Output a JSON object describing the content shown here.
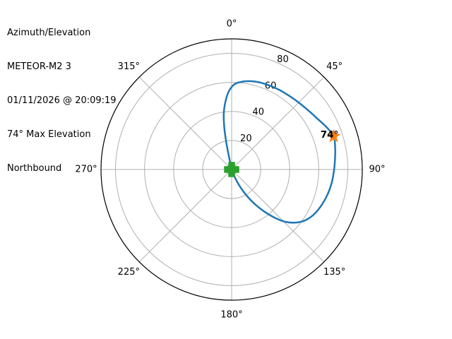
{
  "header": {
    "lines": [
      "Azimuth/Elevation",
      "METEOR-M2 3",
      "01/11/2026 @ 20:09:19",
      "74° Max Elevation",
      "Northbound"
    ]
  },
  "chart_data": {
    "type": "line",
    "subtype": "polar-azimuth-elevation",
    "title": "Azimuth/Elevation",
    "satellite": "METEOR-M2 3",
    "timestamp": "01/11/2026 @ 20:09:19",
    "max_elevation_deg": 74,
    "direction": "Northbound",
    "legend": "none",
    "theta_axis": {
      "unit": "azimuth degrees, 0 = North at top, clockwise",
      "tick_values": [
        0,
        45,
        90,
        135,
        180,
        225,
        270,
        315
      ],
      "tick_labels": [
        "0°",
        "45°",
        "90°",
        "135°",
        "180°",
        "225°",
        "270°",
        "315°"
      ]
    },
    "r_axis": {
      "unit": "elevation degrees (0 at center, 90 at edge)",
      "min": 0,
      "max": 90,
      "tick_values": [
        20,
        40,
        60,
        80
      ],
      "tick_labels": [
        "20",
        "40",
        "60",
        "80"
      ],
      "label_position_deg": 25
    },
    "grid": {
      "ring_color": "#b0b0b0",
      "spoke_color": "#b0b0b0",
      "outline_color": "#000000",
      "grid_on": true
    },
    "series": [
      {
        "name": "satellite-track",
        "color": "#1f77b4",
        "line_width": 2.5,
        "points_az_el": [
          [
            160,
            0
          ],
          [
            158,
            5
          ],
          [
            155,
            11
          ],
          [
            152,
            17
          ],
          [
            149,
            23
          ],
          [
            146,
            29
          ],
          [
            142,
            37
          ],
          [
            138,
            45
          ],
          [
            134,
            52
          ],
          [
            129,
            58
          ],
          [
            124,
            62
          ],
          [
            118,
            64.8
          ],
          [
            111,
            66.8
          ],
          [
            104,
            68.4
          ],
          [
            97,
            69.6
          ],
          [
            90,
            70.6
          ],
          [
            84,
            71.6
          ],
          [
            78,
            72.9
          ],
          [
            72,
            73.9
          ],
          [
            66,
            71.6
          ],
          [
            60,
            68.9
          ],
          [
            53,
            66.8
          ],
          [
            46,
            65.4
          ],
          [
            39,
            64.5
          ],
          [
            31,
            63.9
          ],
          [
            23,
            63.4
          ],
          [
            15,
            62.7
          ],
          [
            8,
            61.3
          ],
          [
            2,
            58.8
          ],
          [
            358,
            54
          ],
          [
            355,
            47.5
          ],
          [
            352,
            39
          ],
          [
            350,
            29
          ],
          [
            348.8,
            19
          ],
          [
            348.2,
            9
          ],
          [
            348,
            0
          ]
        ]
      }
    ],
    "markers": [
      {
        "name": "pass-start-marker",
        "shape": "plus",
        "color": "#2ca02c",
        "az": 160,
        "el": 0
      },
      {
        "name": "max-elevation-marker",
        "shape": "star",
        "color": "#ff7f0e",
        "az": 72,
        "el": 73.9,
        "label": "74°",
        "label_color": "#000000",
        "label_bold": true
      }
    ]
  }
}
